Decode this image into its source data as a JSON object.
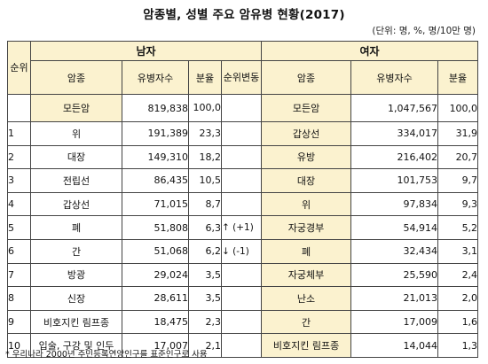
{
  "title": "암종별, 성별 주요 암유병 현황(2017)",
  "unit_note": "(단위: 명, %, 명/10만 명)",
  "header": {
    "rank": "순위",
    "male": "남자",
    "female": "여자",
    "cancer": "암종",
    "count": "유병자수",
    "share": "분율",
    "rank_change": "순위변동"
  },
  "all_row": {
    "male_cancer": "모든암",
    "male_count": "819,838",
    "male_share": "100,0",
    "female_cancer": "모든암",
    "female_count": "1,047,567",
    "female_share": "100,0"
  },
  "rows": [
    {
      "rank": "1",
      "m_cancer": "위",
      "m_count": "191,389",
      "m_share": "23,3",
      "change": "",
      "f_cancer": "갑상선",
      "f_count": "334,017",
      "f_share": "31,9"
    },
    {
      "rank": "2",
      "m_cancer": "대장",
      "m_count": "149,310",
      "m_share": "18,2",
      "change": "",
      "f_cancer": "유방",
      "f_count": "216,402",
      "f_share": "20,7"
    },
    {
      "rank": "3",
      "m_cancer": "전립선",
      "m_count": "86,435",
      "m_share": "10,5",
      "change": "",
      "f_cancer": "대장",
      "f_count": "101,753",
      "f_share": "9,7"
    },
    {
      "rank": "4",
      "m_cancer": "갑상선",
      "m_count": "71,015",
      "m_share": "8,7",
      "change": "",
      "f_cancer": "위",
      "f_count": "97,834",
      "f_share": "9,3"
    },
    {
      "rank": "5",
      "m_cancer": "폐",
      "m_count": "51,808",
      "m_share": "6,3",
      "change": "↑ (+1)",
      "f_cancer": "자궁경부",
      "f_count": "54,914",
      "f_share": "5,2"
    },
    {
      "rank": "6",
      "m_cancer": "간",
      "m_count": "51,068",
      "m_share": "6,2",
      "change": "↓ (-1)",
      "f_cancer": "폐",
      "f_count": "32,434",
      "f_share": "3,1"
    },
    {
      "rank": "7",
      "m_cancer": "방광",
      "m_count": "29,024",
      "m_share": "3,5",
      "change": "",
      "f_cancer": "자궁체부",
      "f_count": "25,590",
      "f_share": "2,4"
    },
    {
      "rank": "8",
      "m_cancer": "신장",
      "m_count": "28,611",
      "m_share": "3,5",
      "change": "",
      "f_cancer": "난소",
      "f_count": "21,013",
      "f_share": "2,0"
    },
    {
      "rank": "9",
      "m_cancer": "비호지킨 림프종",
      "m_count": "18,475",
      "m_share": "2,3",
      "change": "",
      "f_cancer": "간",
      "f_count": "17,009",
      "f_share": "1,6"
    },
    {
      "rank": "10",
      "m_cancer": "입술, 구강 및 인두",
      "m_count": "17,007",
      "m_share": "2,1",
      "change": "",
      "f_cancer": "비호지킨 림프종",
      "f_count": "14,044",
      "f_share": "1,3"
    }
  ],
  "footnote": "* 우리나라 2000년 주민등록연앙인구를 표준인구로 사용",
  "colors": {
    "header_bg": "#fbf2cf",
    "border": "#444444"
  }
}
